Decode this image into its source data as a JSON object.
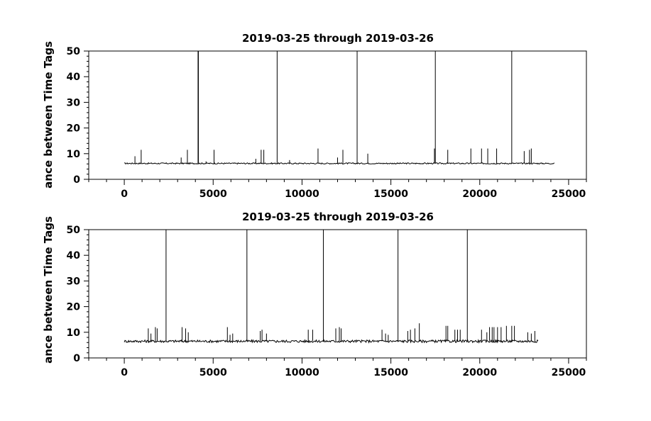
{
  "chart_data": [
    {
      "type": "line",
      "title": "2019-03-25 through 2019-03-26",
      "xlabel": "",
      "ylabel": "ance between Time Tags",
      "xlim": [
        -2000,
        26000
      ],
      "ylim": [
        0,
        50
      ],
      "xticks": [
        "0",
        "5000",
        "10000",
        "15000",
        "20000",
        "25000"
      ],
      "yticks": [
        "0",
        "10",
        "20",
        "30",
        "40",
        "50"
      ],
      "baseline": 6.2,
      "x_range": [
        0,
        24200
      ],
      "series": [
        {
          "x": [
            4150,
            4170,
            8600,
            13100,
            17500,
            21800
          ],
          "y": [
            50,
            50,
            50,
            50,
            50,
            50
          ]
        },
        {
          "x": [
            600,
            950,
            3200,
            3550,
            4600,
            5050,
            7400,
            7700,
            7850,
            9300,
            10900,
            12000,
            12300,
            13700,
            17450,
            18200,
            19500,
            20100,
            20450,
            20950,
            22500,
            22800,
            22900
          ],
          "y": [
            9,
            11.5,
            8.5,
            11.5,
            7,
            11.5,
            8,
            11.5,
            11.5,
            7.5,
            12,
            8.5,
            11.5,
            10,
            12,
            11.5,
            12,
            12,
            12,
            12,
            11,
            11.5,
            12
          ]
        }
      ],
      "grid": false
    },
    {
      "type": "line",
      "title": "2019-03-25 through 2019-03-26",
      "xlabel": "",
      "ylabel": "ance between Time Tags",
      "xlim": [
        -2000,
        26000
      ],
      "ylim": [
        0,
        50
      ],
      "xticks": [
        "0",
        "5000",
        "10000",
        "15000",
        "20000",
        "25000"
      ],
      "yticks": [
        "0",
        "10",
        "20",
        "30",
        "40",
        "50"
      ],
      "baseline": 6.5,
      "x_range": [
        0,
        23300
      ],
      "series": [
        {
          "x": [
            2350,
            6900,
            11200,
            15400,
            19300
          ],
          "y": [
            50,
            50,
            50,
            50,
            50
          ]
        },
        {
          "x": [
            1350,
            1500,
            1750,
            1850,
            3250,
            3450,
            3600,
            5800,
            5950,
            6100,
            7650,
            7750,
            8000,
            10350,
            10600,
            11900,
            12100,
            12200,
            14500,
            14700,
            14850,
            15950,
            16100,
            16350,
            16600,
            18100,
            18200,
            18600,
            18750,
            18900,
            20100,
            20400,
            20550,
            20700,
            20800,
            21000,
            21200,
            21500,
            21800,
            21950,
            22700,
            22900,
            23100
          ],
          "y": [
            11.5,
            9.5,
            12,
            11.5,
            12,
            11.5,
            10,
            12,
            9,
            9.5,
            10.5,
            11,
            9.5,
            11,
            11,
            11.5,
            12,
            11.5,
            11,
            9.5,
            9,
            10.5,
            11,
            11.5,
            13.5,
            12.5,
            12.5,
            11,
            11,
            11,
            11,
            10,
            12,
            12,
            12,
            12,
            12,
            12.5,
            12.5,
            12.5,
            10,
            9.5,
            10.5
          ]
        }
      ],
      "grid": false
    }
  ]
}
